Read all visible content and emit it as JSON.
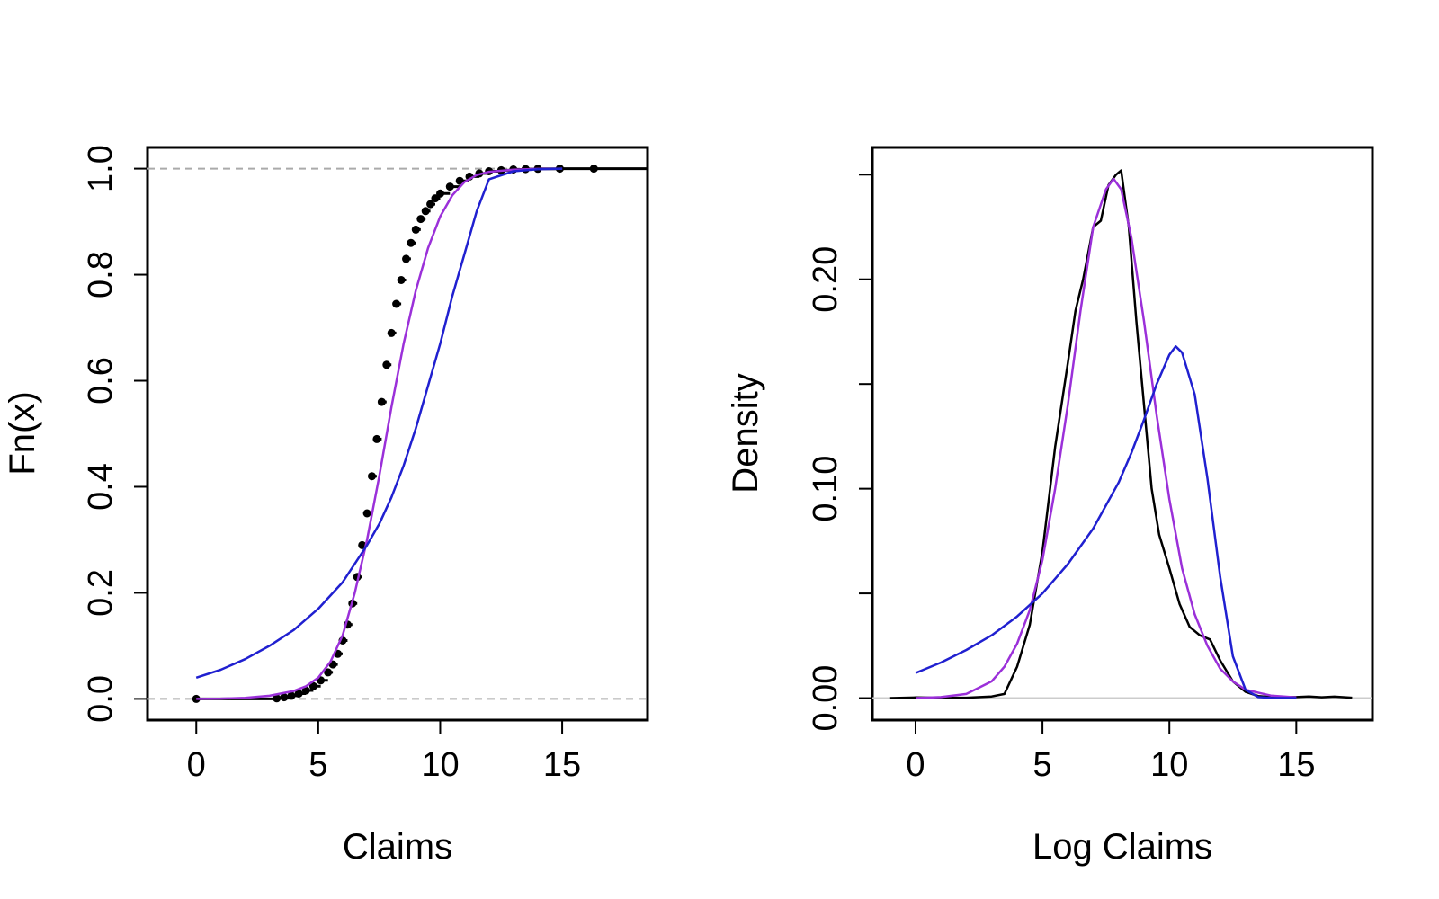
{
  "chart_data": [
    {
      "type": "line",
      "title": "",
      "xlabel": "Claims",
      "ylabel": "Fn(x)",
      "xlim": [
        -2,
        18.5
      ],
      "ylim": [
        -0.04,
        1.04
      ],
      "xticks": [
        0,
        5,
        10,
        15
      ],
      "xtick_labels": [
        "0",
        "5",
        "10",
        "15"
      ],
      "yticks": [
        0.0,
        0.2,
        0.4,
        0.6,
        0.8,
        1.0
      ],
      "ytick_labels": [
        "0.0",
        "0.2",
        "0.4",
        "0.6",
        "0.8",
        "1.0"
      ],
      "reference_lines": [
        0,
        1
      ],
      "grid": false,
      "legend": "none",
      "series": [
        {
          "kind": "ecdf-points",
          "color": "#000000",
          "x": [
            0,
            3.3,
            3.6,
            3.9,
            4.2,
            4.5,
            4.8,
            5.1,
            5.4,
            5.6,
            5.8,
            6.0,
            6.2,
            6.4,
            6.6,
            6.8,
            7.0,
            7.2,
            7.4,
            7.6,
            7.8,
            8.0,
            8.2,
            8.4,
            8.6,
            8.8,
            9.0,
            9.2,
            9.4,
            9.6,
            9.8,
            10.0,
            10.4,
            10.8,
            11.2,
            11.6,
            12.0,
            12.5,
            13.0,
            13.5,
            14.0,
            14.9,
            16.3
          ],
          "y": [
            0.0,
            0.001,
            0.003,
            0.006,
            0.01,
            0.016,
            0.024,
            0.035,
            0.05,
            0.065,
            0.085,
            0.11,
            0.14,
            0.18,
            0.23,
            0.29,
            0.35,
            0.42,
            0.49,
            0.56,
            0.63,
            0.69,
            0.745,
            0.79,
            0.83,
            0.86,
            0.885,
            0.905,
            0.92,
            0.933,
            0.944,
            0.953,
            0.966,
            0.977,
            0.985,
            0.991,
            0.995,
            0.997,
            0.9985,
            0.9992,
            0.9996,
            1.0,
            1.0
          ]
        },
        {
          "kind": "fitted-cdf",
          "color": "#9b30d9",
          "x": [
            0,
            1,
            2,
            3,
            4,
            4.5,
            5,
            5.5,
            6,
            6.5,
            7,
            7.5,
            8,
            8.5,
            9,
            9.5,
            10,
            10.5,
            11,
            11.5,
            12,
            13,
            14,
            15
          ],
          "y": [
            0.0,
            0.0005,
            0.002,
            0.006,
            0.015,
            0.024,
            0.04,
            0.07,
            0.12,
            0.2,
            0.3,
            0.42,
            0.55,
            0.67,
            0.77,
            0.85,
            0.91,
            0.95,
            0.975,
            0.988,
            0.994,
            0.998,
            0.9995,
            1.0
          ]
        },
        {
          "kind": "fitted-cdf",
          "color": "#2020d0",
          "x": [
            0,
            1,
            2,
            3,
            4,
            5,
            6,
            7,
            7.5,
            8,
            8.5,
            9,
            9.5,
            10,
            10.5,
            11,
            11.5,
            12,
            13,
            14,
            15
          ],
          "y": [
            0.04,
            0.055,
            0.075,
            0.1,
            0.13,
            0.17,
            0.22,
            0.29,
            0.33,
            0.38,
            0.44,
            0.51,
            0.59,
            0.67,
            0.76,
            0.84,
            0.92,
            0.98,
            0.995,
            0.999,
            1.0
          ]
        }
      ]
    },
    {
      "type": "line",
      "title": "",
      "xlabel": "Log Claims",
      "ylabel": "Density",
      "xlim": [
        -1.7,
        18
      ],
      "ylim": [
        -0.0105,
        0.263
      ],
      "xticks": [
        0,
        5,
        10,
        15
      ],
      "xtick_labels": [
        "0",
        "5",
        "10",
        "15"
      ],
      "yticks": [
        0.0,
        0.05,
        0.1,
        0.15,
        0.2,
        0.25
      ],
      "ytick_labels": [
        "0.00",
        "",
        "0.10",
        "",
        "0.20",
        ""
      ],
      "reference_lines": [
        0
      ],
      "grid": false,
      "legend": "none",
      "series": [
        {
          "kind": "kernel-density",
          "color": "#000000",
          "x": [
            -1,
            0,
            1,
            2,
            3,
            3.5,
            4,
            4.5,
            5,
            5.5,
            6,
            6.3,
            6.6,
            7,
            7.3,
            7.6,
            7.9,
            8.1,
            8.4,
            8.7,
            9,
            9.3,
            9.6,
            10,
            10.4,
            10.8,
            11.2,
            11.6,
            12,
            12.5,
            13,
            13.5,
            14,
            14.5,
            15,
            15.5,
            16,
            16.5,
            17.2
          ],
          "y": [
            0.0,
            0.0003,
            0.0002,
            0.0002,
            0.0008,
            0.002,
            0.015,
            0.035,
            0.07,
            0.12,
            0.16,
            0.185,
            0.2,
            0.225,
            0.228,
            0.245,
            0.25,
            0.252,
            0.225,
            0.18,
            0.14,
            0.1,
            0.078,
            0.062,
            0.045,
            0.034,
            0.03,
            0.028,
            0.018,
            0.008,
            0.003,
            0.001,
            0.0005,
            0.0005,
            0.0005,
            0.0008,
            0.0004,
            0.0007,
            0.0002
          ]
        },
        {
          "kind": "fitted-density",
          "color": "#9b30d9",
          "x": [
            0,
            1,
            2,
            3,
            3.5,
            4,
            4.5,
            5,
            5.5,
            6,
            6.5,
            7,
            7.5,
            7.8,
            8.1,
            8.5,
            9,
            9.5,
            10,
            10.5,
            11,
            11.5,
            12,
            12.5,
            13,
            14,
            15
          ],
          "y": [
            0.0,
            0.0005,
            0.002,
            0.008,
            0.015,
            0.026,
            0.042,
            0.066,
            0.1,
            0.14,
            0.185,
            0.225,
            0.243,
            0.248,
            0.243,
            0.22,
            0.18,
            0.135,
            0.095,
            0.062,
            0.04,
            0.025,
            0.014,
            0.008,
            0.004,
            0.0012,
            0.0003
          ]
        },
        {
          "kind": "fitted-density",
          "color": "#2020d0",
          "x": [
            0,
            1,
            2,
            3,
            4,
            5,
            6,
            7,
            8,
            8.5,
            9,
            9.5,
            10,
            10.25,
            10.5,
            11,
            11.5,
            12,
            12.5,
            13,
            13.5,
            14,
            15
          ],
          "y": [
            0.012,
            0.017,
            0.023,
            0.03,
            0.039,
            0.05,
            0.064,
            0.081,
            0.103,
            0.117,
            0.133,
            0.15,
            0.164,
            0.168,
            0.165,
            0.145,
            0.105,
            0.058,
            0.02,
            0.004,
            0.0005,
            0.0001,
            0.0
          ]
        }
      ]
    }
  ]
}
